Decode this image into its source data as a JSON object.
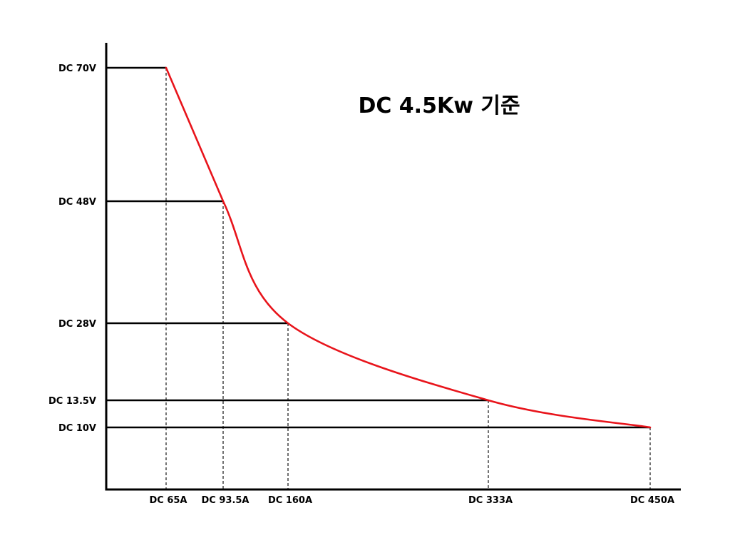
{
  "chart_data": {
    "type": "line",
    "title": "DC 4.5Kw 기준",
    "xlabel": "",
    "ylabel": "",
    "series": [
      {
        "color": "#e8141b",
        "points": [
          {
            "x": 65,
            "y": 70
          },
          {
            "x": 93.5,
            "y": 48
          },
          {
            "x": 160,
            "y": 28
          },
          {
            "x": 333,
            "y": 13.5
          },
          {
            "x": 450,
            "y": 10
          }
        ]
      }
    ],
    "x_ticks": [
      {
        "value": 65,
        "label": "DC 65A"
      },
      {
        "value": 93.5,
        "label": "DC 93.5A"
      },
      {
        "value": 160,
        "label": "DC 160A"
      },
      {
        "value": 333,
        "label": "DC 333A"
      },
      {
        "value": 450,
        "label": "DC 450A"
      }
    ],
    "y_ticks": [
      {
        "value": 70,
        "label": "DC 70V"
      },
      {
        "value": 48,
        "label": "DC 48V"
      },
      {
        "value": 28,
        "label": "DC 28V"
      },
      {
        "value": 13.5,
        "label": "DC 13.5V"
      },
      {
        "value": 10,
        "label": "DC 10V"
      }
    ],
    "grid": "reference lines at data points",
    "legend": "none"
  }
}
